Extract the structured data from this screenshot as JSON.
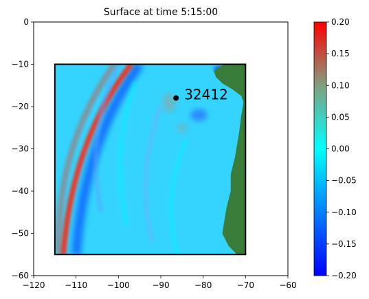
{
  "chart_data": {
    "type": "heatmap",
    "title": "Surface at time 5:15:00",
    "xlabel": "",
    "ylabel": "",
    "xlim": [
      -120,
      -60
    ],
    "ylim": [
      -60,
      0
    ],
    "x_ticks": [
      -120,
      -110,
      -100,
      -90,
      -80,
      -70,
      -60
    ],
    "y_ticks": [
      0,
      -10,
      -20,
      -30,
      -40,
      -50,
      -60
    ],
    "x_tick_labels": [
      "−120",
      "−110",
      "−100",
      "−90",
      "−80",
      "−70",
      "−60"
    ],
    "y_tick_labels": [
      "0",
      "−10",
      "−20",
      "−30",
      "−40",
      "−50",
      "−60"
    ],
    "grid": false,
    "domain_box": {
      "x": [
        -115,
        -70
      ],
      "y": [
        -55,
        -10
      ]
    },
    "gauge": {
      "label": "32412",
      "x": -86.4,
      "y": -17.98
    },
    "colorbar": {
      "vmin": -0.2,
      "vmax": 0.2,
      "ticks": [
        0.2,
        0.15,
        0.1,
        0.05,
        0.0,
        -0.05,
        -0.1,
        -0.15,
        -0.2
      ],
      "tick_labels": [
        "0.20",
        "0.15",
        "0.10",
        "0.05",
        "0.00",
        "−0.05",
        "−0.10",
        "−0.15",
        "−0.20"
      ],
      "colors": {
        "low": "#0000ff",
        "mid": "#00ffff",
        "mid_high": "#80a080",
        "high": "#ff0000"
      }
    },
    "land_color": "#3a7d3a",
    "wave_front": {
      "description_values": "red leading wave front (~0.2) arcing from about (-97,-10) to (-113,-55)",
      "max_surface": 0.2,
      "min_surface": -0.2
    }
  }
}
